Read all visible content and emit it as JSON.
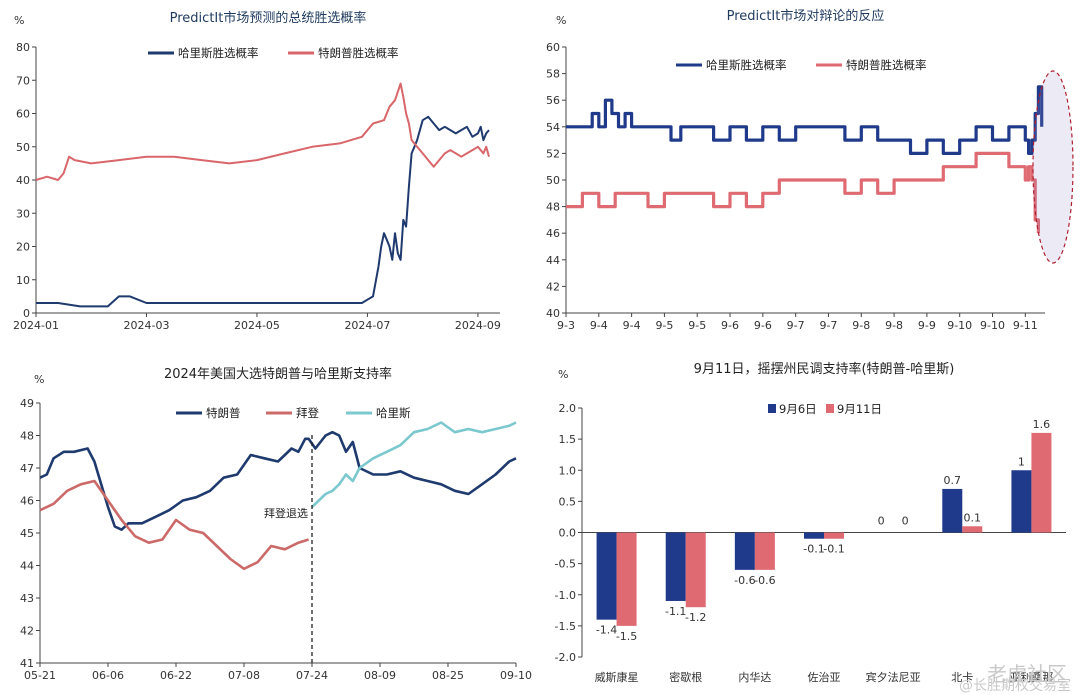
{
  "watermark": {
    "main": "老虎社区",
    "sub": "@长胜期权交易室"
  },
  "colors": {
    "harris": "#1f3a6e",
    "trump": "#d9666a",
    "biden": "#cc6a6a",
    "harris_light": "#7cc8cf",
    "navy": "#1f3a8a",
    "red": "#e06a72"
  },
  "chart_data": [
    {
      "id": "c1",
      "type": "line",
      "title": "PredictIt市场预测的总统胜选概率",
      "unit": "%",
      "ylim": [
        0,
        80
      ],
      "yticks": [
        0,
        10,
        20,
        30,
        40,
        50,
        60,
        70,
        80
      ],
      "xticks": [
        "2024-01",
        "2024-03",
        "2024-05",
        "2024-07",
        "2024-09"
      ],
      "xtick_pos": [
        0,
        2,
        4,
        6,
        8
      ],
      "xlim": [
        0,
        8.4
      ],
      "legend": [
        "哈里斯胜选概率",
        "特朗普胜选概率"
      ],
      "series": [
        {
          "name": "哈里斯胜选概率",
          "x": [
            0,
            0.4,
            0.8,
            1.0,
            1.3,
            1.5,
            1.7,
            2.0,
            2.5,
            3.0,
            3.5,
            4.0,
            4.5,
            5.0,
            5.5,
            5.9,
            6.0,
            6.1,
            6.2,
            6.25,
            6.3,
            6.35,
            6.4,
            6.45,
            6.5,
            6.55,
            6.6,
            6.65,
            6.7,
            6.75,
            6.8,
            6.85,
            6.9,
            6.95,
            7.0,
            7.1,
            7.2,
            7.3,
            7.4,
            7.5,
            7.6,
            7.7,
            7.8,
            7.9,
            8.0,
            8.05,
            8.1,
            8.15,
            8.2
          ],
          "values": [
            3,
            3,
            2,
            2,
            2,
            5,
            5,
            3,
            3,
            3,
            3,
            3,
            3,
            3,
            3,
            3,
            4,
            5,
            14,
            20,
            24,
            22,
            20,
            16,
            24,
            18,
            16,
            28,
            26,
            38,
            48,
            50,
            52,
            55,
            58,
            59,
            57,
            55,
            56,
            55,
            54,
            55,
            56,
            53,
            54,
            56,
            52,
            54,
            55
          ]
        },
        {
          "name": "特朗普胜选概率",
          "x": [
            0,
            0.2,
            0.4,
            0.5,
            0.6,
            0.7,
            1.0,
            1.5,
            2.0,
            2.5,
            3.0,
            3.5,
            4.0,
            4.5,
            5.0,
            5.5,
            5.9,
            6.1,
            6.3,
            6.4,
            6.5,
            6.6,
            6.65,
            6.7,
            6.75,
            6.8,
            6.9,
            7.0,
            7.1,
            7.2,
            7.3,
            7.4,
            7.5,
            7.6,
            7.7,
            7.8,
            7.9,
            8.0,
            8.1,
            8.15,
            8.2
          ],
          "values": [
            40,
            41,
            40,
            42,
            47,
            46,
            45,
            46,
            47,
            47,
            46,
            45,
            46,
            48,
            50,
            51,
            53,
            57,
            58,
            62,
            64,
            69,
            65,
            60,
            57,
            52,
            50,
            48,
            46,
            44,
            46,
            48,
            49,
            48,
            47,
            48,
            49,
            50,
            48,
            50,
            47
          ]
        }
      ]
    },
    {
      "id": "c2",
      "type": "line",
      "title": "PredictIt市场对辩论的反应",
      "unit": "%",
      "ylim": [
        40,
        60
      ],
      "yticks": [
        40,
        42,
        44,
        46,
        48,
        50,
        52,
        54,
        56,
        58,
        60
      ],
      "xticks": [
        "9-3",
        "9-4",
        "9-4",
        "9-5",
        "9-5",
        "9-6",
        "9-6",
        "9-7",
        "9-7",
        "9-8",
        "9-8",
        "9-9",
        "9-10",
        "9-10",
        "9-11"
      ],
      "legend": [
        "哈里斯胜选概率",
        "特朗普胜选概率"
      ],
      "series": [
        {
          "name": "哈里斯胜选概率",
          "x": [
            0,
            0.5,
            0.8,
            1.0,
            1.2,
            1.4,
            1.6,
            1.8,
            2.0,
            2.5,
            3.0,
            3.2,
            3.5,
            4.0,
            4.5,
            5.0,
            5.5,
            6.0,
            6.5,
            7.0,
            7.5,
            8.0,
            8.5,
            9.0,
            9.5,
            10.0,
            10.5,
            11.0,
            11.5,
            12.0,
            12.5,
            13.0,
            13.5,
            14.0,
            14.1,
            14.2,
            14.3,
            14.4,
            14.5
          ],
          "values": [
            54,
            54,
            55,
            54,
            56,
            55,
            54,
            55,
            54,
            54,
            54,
            53,
            54,
            54,
            53,
            54,
            53,
            54,
            53,
            54,
            54,
            54,
            53,
            54,
            53,
            53,
            52,
            53,
            52,
            53,
            54,
            53,
            54,
            53,
            52,
            53,
            55,
            57,
            54
          ]
        },
        {
          "name": "特朗普胜选概率",
          "x": [
            0,
            0.5,
            1.0,
            1.5,
            2.0,
            2.5,
            3.0,
            3.5,
            4.0,
            4.5,
            5.0,
            5.5,
            6.0,
            6.5,
            7.0,
            7.5,
            8.0,
            8.5,
            9.0,
            9.5,
            10.0,
            10.5,
            11.0,
            11.5,
            12.0,
            12.5,
            13.0,
            13.5,
            13.8,
            14.0,
            14.1,
            14.2,
            14.3,
            14.4
          ],
          "values": [
            48,
            49,
            48,
            49,
            49,
            48,
            49,
            49,
            49,
            48,
            49,
            48,
            49,
            50,
            50,
            50,
            50,
            49,
            50,
            49,
            50,
            50,
            50,
            51,
            51,
            52,
            52,
            51,
            51,
            50,
            51,
            50,
            47,
            46
          ]
        }
      ]
    },
    {
      "id": "c3",
      "type": "line",
      "title": "2024年美国大选特朗普与哈里斯支持率",
      "unit": "%",
      "ylim": [
        41,
        49
      ],
      "yticks": [
        41,
        42,
        43,
        44,
        45,
        46,
        47,
        48,
        49
      ],
      "xticks": [
        "05-21",
        "06-06",
        "06-22",
        "07-08",
        "07-24",
        "08-09",
        "08-25",
        "09-10"
      ],
      "xlim": [
        0,
        7
      ],
      "legend": [
        "特朗普",
        "拜登",
        "哈里斯"
      ],
      "annotation": "拜登退选",
      "annotation_x": 4,
      "series": [
        {
          "name": "特朗普",
          "x": [
            0,
            0.1,
            0.2,
            0.35,
            0.5,
            0.7,
            0.8,
            0.9,
            1.0,
            1.1,
            1.2,
            1.3,
            1.5,
            1.7,
            1.9,
            2.1,
            2.3,
            2.5,
            2.7,
            2.9,
            3.1,
            3.3,
            3.5,
            3.7,
            3.8,
            3.9,
            3.95,
            4.05,
            4.2,
            4.3,
            4.4,
            4.5,
            4.6,
            4.7,
            4.9,
            5.1,
            5.3,
            5.5,
            5.7,
            5.9,
            6.1,
            6.3,
            6.5,
            6.7,
            6.9,
            7.0
          ],
          "values": [
            46.7,
            46.8,
            47.3,
            47.5,
            47.5,
            47.6,
            47.2,
            46.5,
            45.8,
            45.2,
            45.1,
            45.3,
            45.3,
            45.5,
            45.7,
            46.0,
            46.1,
            46.3,
            46.7,
            46.8,
            47.4,
            47.3,
            47.2,
            47.6,
            47.5,
            47.9,
            47.9,
            47.6,
            48.0,
            48.1,
            48.0,
            47.5,
            47.8,
            47.0,
            46.8,
            46.8,
            46.9,
            46.7,
            46.6,
            46.5,
            46.3,
            46.2,
            46.5,
            46.8,
            47.2,
            47.3
          ]
        },
        {
          "name": "拜登",
          "x": [
            0,
            0.2,
            0.4,
            0.6,
            0.8,
            1.0,
            1.2,
            1.4,
            1.6,
            1.8,
            2.0,
            2.2,
            2.4,
            2.6,
            2.8,
            3.0,
            3.2,
            3.4,
            3.6,
            3.8,
            3.95
          ],
          "values": [
            45.7,
            45.9,
            46.3,
            46.5,
            46.6,
            46.0,
            45.4,
            44.9,
            44.7,
            44.8,
            45.4,
            45.1,
            45.0,
            44.6,
            44.2,
            43.9,
            44.1,
            44.6,
            44.5,
            44.7,
            44.8
          ]
        },
        {
          "name": "哈里斯",
          "x": [
            4.0,
            4.1,
            4.2,
            4.3,
            4.4,
            4.5,
            4.6,
            4.7,
            4.9,
            5.1,
            5.3,
            5.5,
            5.7,
            5.9,
            6.1,
            6.3,
            6.5,
            6.7,
            6.9,
            7.0
          ],
          "values": [
            45.8,
            46.0,
            46.2,
            46.3,
            46.5,
            46.8,
            46.6,
            47.0,
            47.3,
            47.5,
            47.7,
            48.1,
            48.2,
            48.4,
            48.1,
            48.2,
            48.1,
            48.2,
            48.3,
            48.4
          ]
        }
      ]
    },
    {
      "id": "c4",
      "type": "bar",
      "title": "9月11日，摇摆州民调支持率(特朗普-哈里斯)",
      "unit": "%",
      "ylim": [
        -2.0,
        2.0
      ],
      "yticks": [
        "-2.0",
        "-1.5",
        "-1.0",
        "-0.5",
        "0.0",
        "0.5",
        "1.0",
        "1.5",
        "2.0"
      ],
      "categories": [
        "威斯康星",
        "密歇根",
        "内华达",
        "佐治亚",
        "宾夕法尼亚",
        "北卡",
        "亚利桑那"
      ],
      "legend": [
        "9月6日",
        "9月11日"
      ],
      "series": [
        {
          "name": "9月6日",
          "values": [
            -1.4,
            -1.1,
            -0.6,
            -0.1,
            0,
            0.7,
            1
          ],
          "labels": [
            "-1.4",
            "-1.1",
            "-0.6",
            "-0.1",
            "0",
            "0.7",
            "1"
          ]
        },
        {
          "name": "9月11日",
          "values": [
            -1.5,
            -1.2,
            -0.6,
            -0.1,
            0,
            0.1,
            1.6
          ],
          "labels": [
            "-1.5",
            "-1.2",
            "-0.6",
            "-0.1",
            "0",
            "0.1",
            "1.6"
          ]
        }
      ]
    }
  ]
}
